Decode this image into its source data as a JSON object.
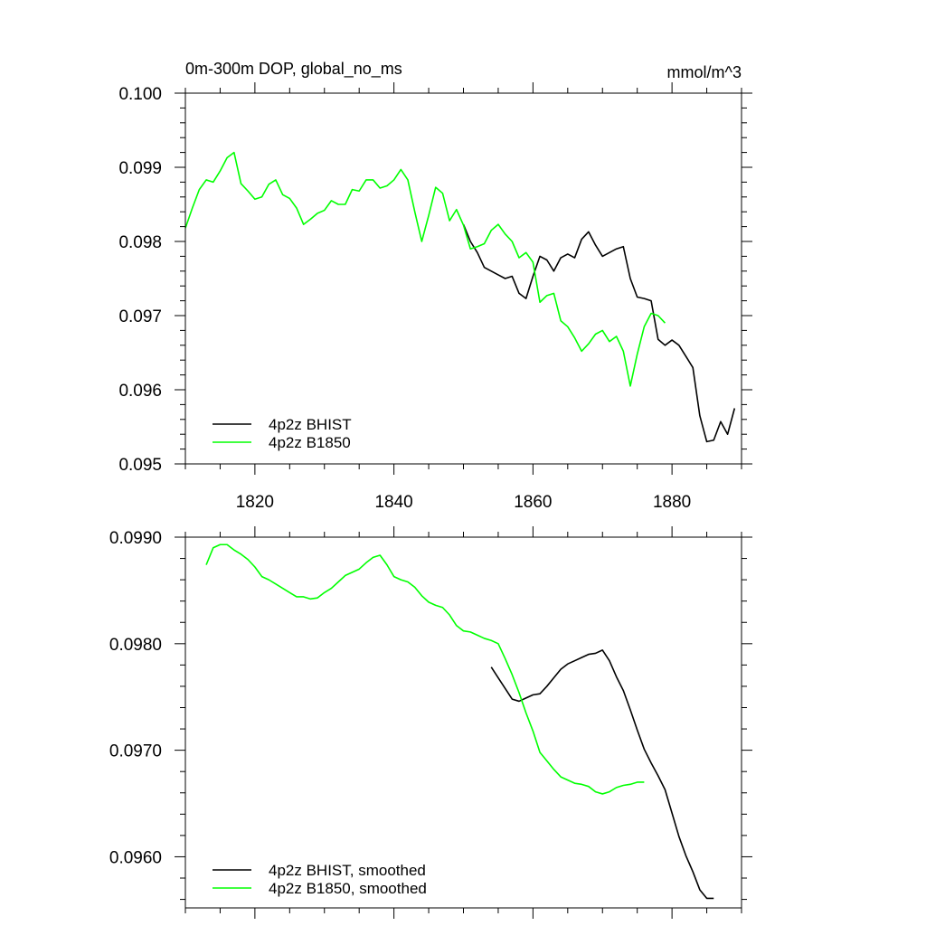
{
  "chart_data": [
    {
      "type": "line",
      "title": "0m-300m DOP, global_no_ms",
      "units": "mmol/m^3",
      "xlim": [
        1810,
        1890
      ],
      "ylim": [
        0.095,
        0.1
      ],
      "xticks": [
        1820,
        1840,
        1860,
        1880
      ],
      "xtick_labels": [
        "1820",
        "1840",
        "1860",
        "1880"
      ],
      "yticks": [
        0.095,
        0.096,
        0.097,
        0.098,
        0.099,
        0.1
      ],
      "ytick_labels": [
        "0.095",
        "0.096",
        "0.097",
        "0.098",
        "0.099",
        "0.100"
      ],
      "legend_position": "bottom-left",
      "series": [
        {
          "name": "4p2z BHIST",
          "color": "#000000",
          "x": [
            1850,
            1851,
            1852,
            1853,
            1854,
            1855,
            1856,
            1857,
            1858,
            1859,
            1860,
            1861,
            1862,
            1863,
            1864,
            1865,
            1866,
            1867,
            1868,
            1869,
            1870,
            1871,
            1872,
            1873,
            1874,
            1875,
            1876,
            1877,
            1878,
            1879,
            1880,
            1881,
            1882,
            1883,
            1884,
            1885,
            1886,
            1887,
            1888,
            1889
          ],
          "y": [
            0.09823,
            0.098,
            0.09785,
            0.09765,
            0.0976,
            0.09755,
            0.0975,
            0.09753,
            0.0973,
            0.09723,
            0.09753,
            0.0978,
            0.09775,
            0.0976,
            0.09778,
            0.09783,
            0.09778,
            0.09803,
            0.09813,
            0.09795,
            0.0978,
            0.09785,
            0.0979,
            0.09793,
            0.0975,
            0.09725,
            0.09723,
            0.0972,
            0.09668,
            0.0966,
            0.09667,
            0.0966,
            0.09645,
            0.0963,
            0.09565,
            0.0953,
            0.09532,
            0.09557,
            0.0954,
            0.09575
          ]
        },
        {
          "name": "4p2z B1850",
          "color": "#00ff00",
          "x": [
            1810,
            1811,
            1812,
            1813,
            1814,
            1815,
            1816,
            1817,
            1818,
            1819,
            1820,
            1821,
            1822,
            1823,
            1824,
            1825,
            1826,
            1827,
            1828,
            1829,
            1830,
            1831,
            1832,
            1833,
            1834,
            1835,
            1836,
            1837,
            1838,
            1839,
            1840,
            1841,
            1842,
            1843,
            1844,
            1845,
            1846,
            1847,
            1848,
            1849,
            1850,
            1851,
            1852,
            1853,
            1854,
            1855,
            1856,
            1857,
            1858,
            1859,
            1860,
            1861,
            1862,
            1863,
            1864,
            1865,
            1866,
            1867,
            1868,
            1869,
            1870,
            1871,
            1872,
            1873,
            1874,
            1875,
            1876,
            1877,
            1878,
            1879
          ],
          "y": [
            0.09818,
            0.09845,
            0.0987,
            0.09883,
            0.0988,
            0.09895,
            0.09913,
            0.0992,
            0.09878,
            0.09868,
            0.09857,
            0.0986,
            0.09877,
            0.09883,
            0.09863,
            0.09858,
            0.09845,
            0.09823,
            0.0983,
            0.09838,
            0.09842,
            0.09855,
            0.0985,
            0.0985,
            0.0987,
            0.09868,
            0.09883,
            0.09883,
            0.09872,
            0.09875,
            0.09883,
            0.09897,
            0.09883,
            0.0984,
            0.098,
            0.09835,
            0.09873,
            0.09865,
            0.09828,
            0.09843,
            0.09822,
            0.0979,
            0.09793,
            0.09797,
            0.09815,
            0.09823,
            0.0981,
            0.098,
            0.09778,
            0.09785,
            0.09772,
            0.09718,
            0.09727,
            0.0973,
            0.09693,
            0.09685,
            0.0967,
            0.09652,
            0.09662,
            0.09675,
            0.0968,
            0.09665,
            0.09672,
            0.09652,
            0.09605,
            0.09648,
            0.09685,
            0.09703,
            0.097,
            0.0969
          ]
        }
      ]
    },
    {
      "type": "line",
      "xlim": [
        1810,
        1890
      ],
      "ylim": [
        0.09552,
        0.099
      ],
      "xticks": [
        1820,
        1840,
        1860,
        1880
      ],
      "yticks": [
        0.096,
        0.097,
        0.098,
        0.099
      ],
      "ytick_labels": [
        "0.0960",
        "0.0970",
        "0.0980",
        "0.0990"
      ],
      "legend_position": "bottom-left",
      "series": [
        {
          "name": "4p2z BHIST, smoothed",
          "color": "#000000",
          "x": [
            1854,
            1855,
            1856,
            1857,
            1858,
            1859,
            1860,
            1861,
            1862,
            1863,
            1864,
            1865,
            1866,
            1867,
            1868,
            1869,
            1870,
            1871,
            1872,
            1873,
            1874,
            1875,
            1876,
            1877,
            1878,
            1879,
            1880,
            1881,
            1882,
            1883,
            1884,
            1885,
            1886
          ],
          "y": [
            0.09778,
            0.09768,
            0.09758,
            0.09748,
            0.09746,
            0.09749,
            0.09752,
            0.09753,
            0.0976,
            0.09768,
            0.09776,
            0.09781,
            0.09784,
            0.09787,
            0.0979,
            0.09791,
            0.09794,
            0.09784,
            0.09769,
            0.09756,
            0.09738,
            0.09719,
            0.09701,
            0.09688,
            0.09676,
            0.09663,
            0.09641,
            0.09619,
            0.09601,
            0.09586,
            0.09569,
            0.09561,
            0.09561
          ]
        },
        {
          "name": "4p2z B1850, smoothed",
          "color": "#00ff00",
          "x": [
            1813,
            1814,
            1815,
            1816,
            1817,
            1818,
            1819,
            1820,
            1821,
            1822,
            1823,
            1824,
            1825,
            1826,
            1827,
            1828,
            1829,
            1830,
            1831,
            1832,
            1833,
            1834,
            1835,
            1836,
            1837,
            1838,
            1839,
            1840,
            1841,
            1842,
            1843,
            1844,
            1845,
            1846,
            1847,
            1848,
            1849,
            1850,
            1851,
            1852,
            1853,
            1854,
            1855,
            1856,
            1857,
            1858,
            1859,
            1860,
            1861,
            1862,
            1863,
            1864,
            1865,
            1866,
            1867,
            1868,
            1869,
            1870,
            1871,
            1872,
            1873,
            1874,
            1875,
            1876
          ],
          "y": [
            0.09874,
            0.0989,
            0.09893,
            0.09893,
            0.09888,
            0.09884,
            0.09879,
            0.09872,
            0.09863,
            0.0986,
            0.09856,
            0.09852,
            0.09848,
            0.09844,
            0.09844,
            0.09842,
            0.09843,
            0.09848,
            0.09852,
            0.09858,
            0.09864,
            0.09867,
            0.0987,
            0.09876,
            0.09881,
            0.09883,
            0.09874,
            0.09863,
            0.0986,
            0.09858,
            0.09853,
            0.09845,
            0.09839,
            0.09836,
            0.09834,
            0.09827,
            0.09817,
            0.09812,
            0.09811,
            0.09808,
            0.09805,
            0.09803,
            0.098,
            0.09786,
            0.09771,
            0.09754,
            0.09735,
            0.09718,
            0.09698,
            0.0969,
            0.09682,
            0.09675,
            0.09672,
            0.09669,
            0.09668,
            0.09666,
            0.09661,
            0.09659,
            0.09661,
            0.09665,
            0.09667,
            0.09668,
            0.0967,
            0.0967
          ]
        }
      ]
    }
  ]
}
